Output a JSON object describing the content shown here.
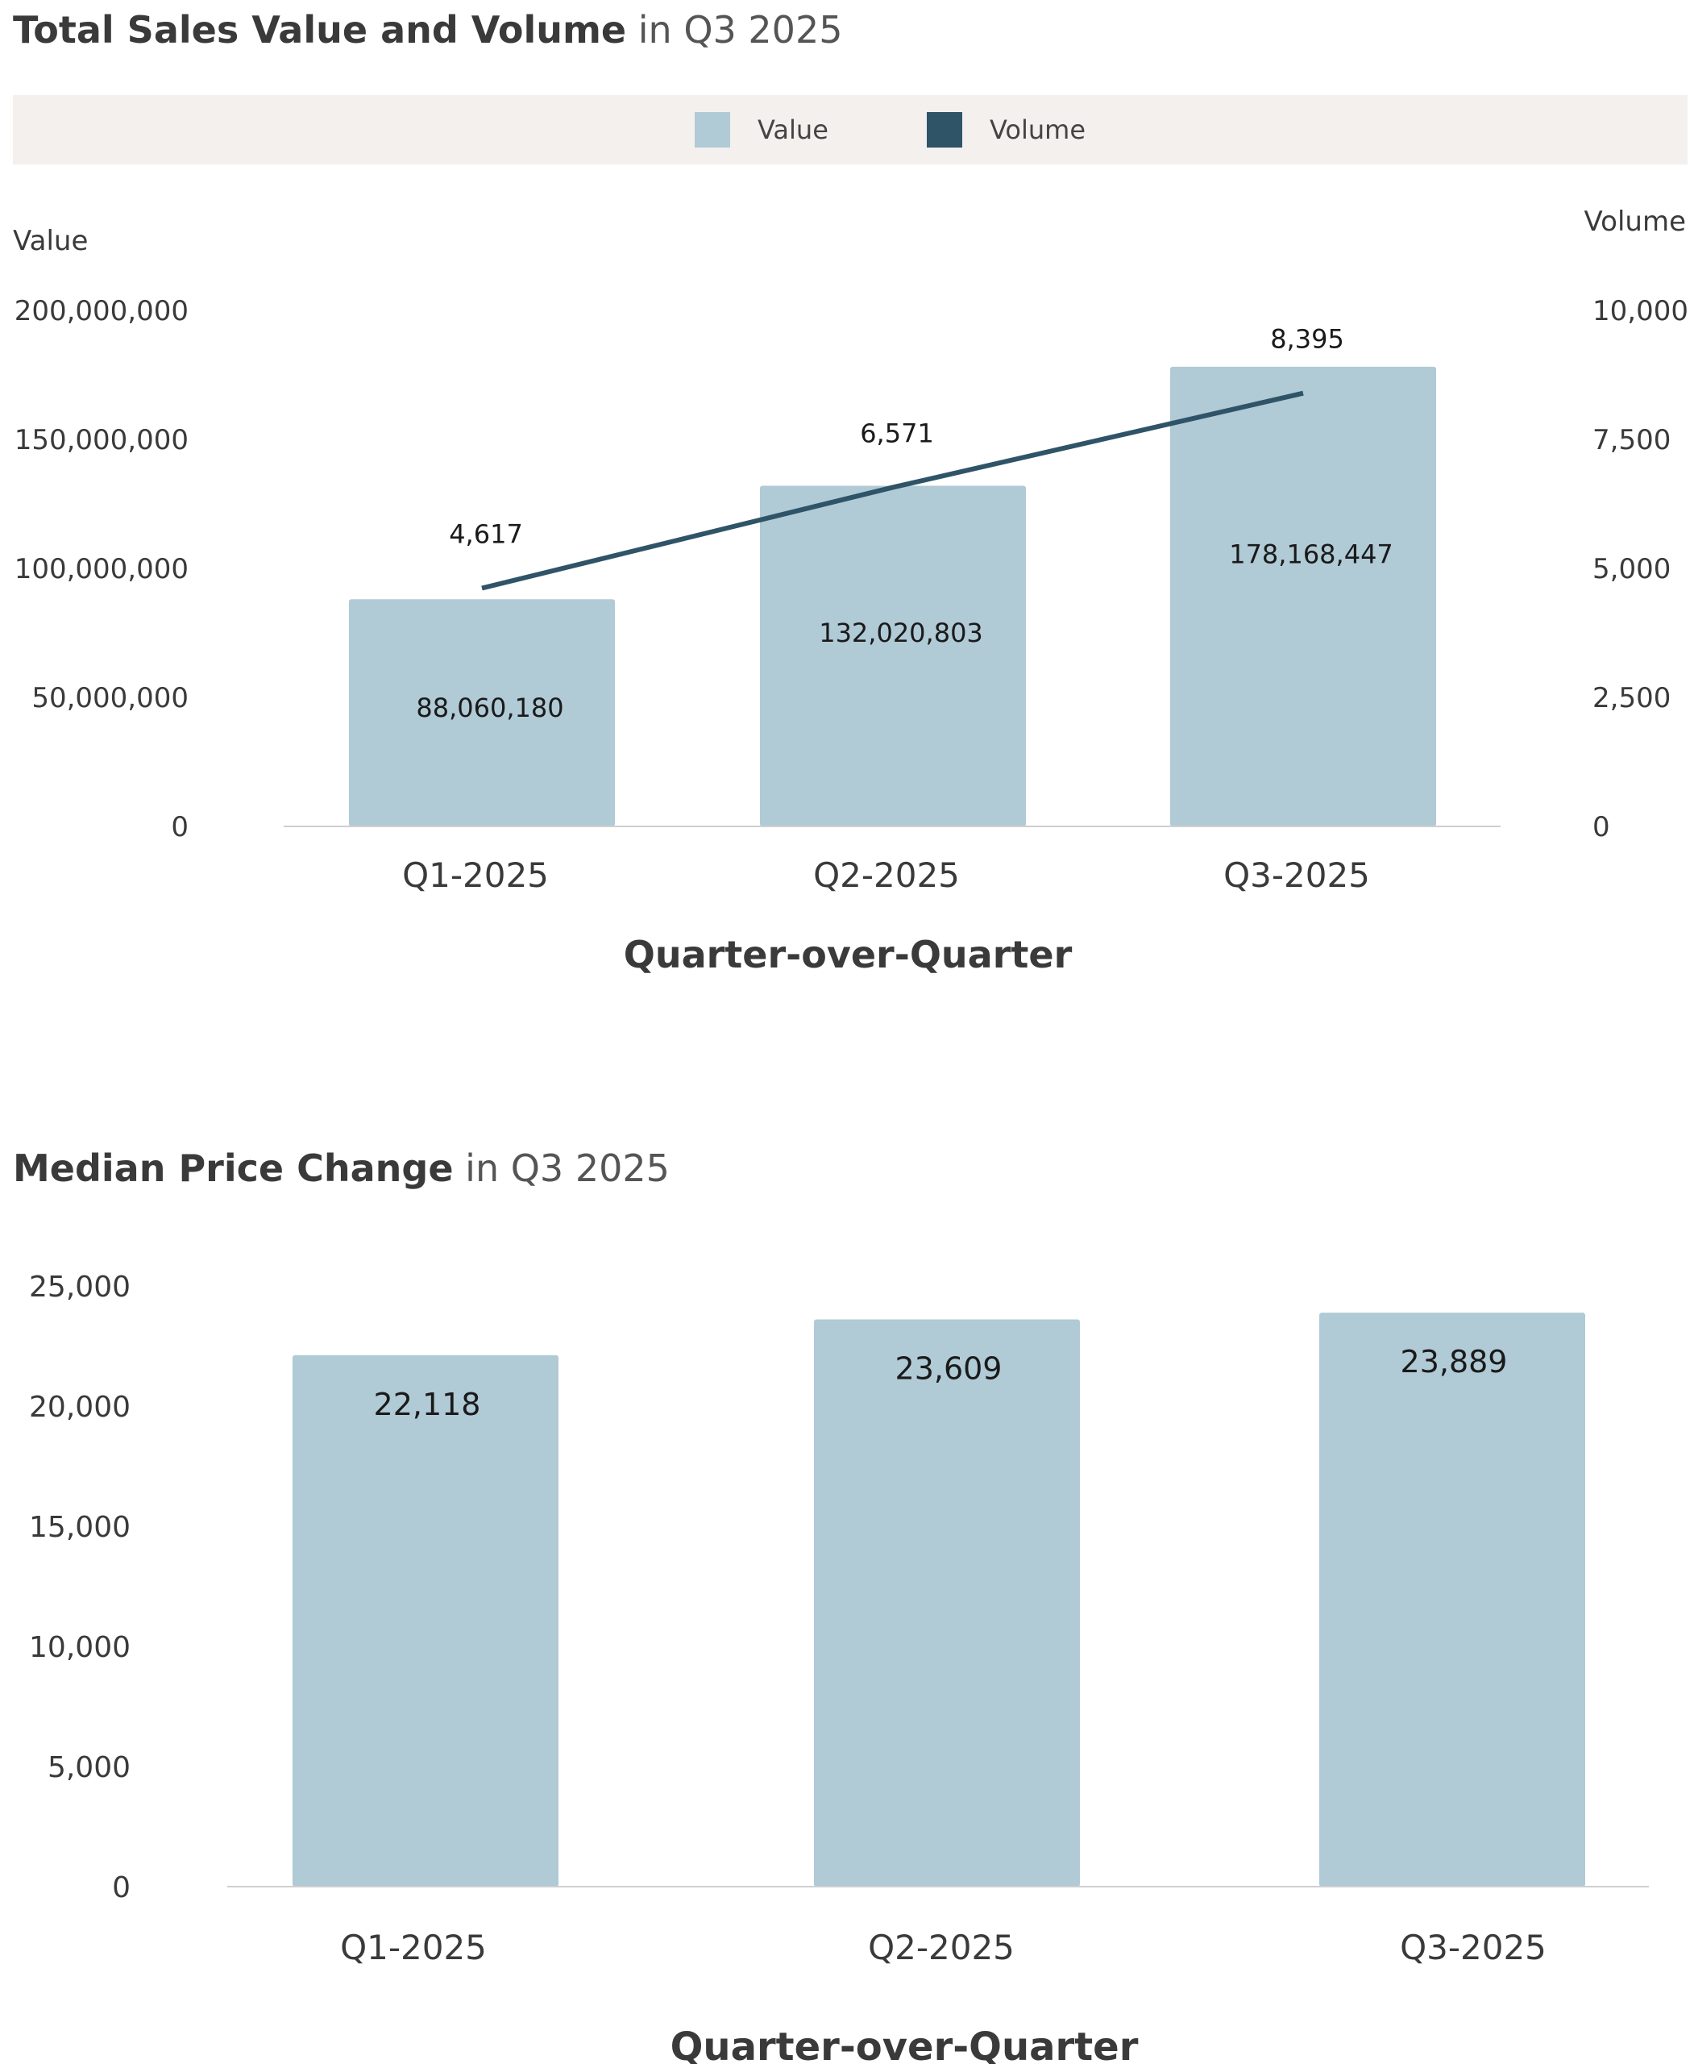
{
  "charts": {
    "sales": {
      "title_bold": "Total Sales Value and Volume",
      "title_light": " in Q3 2025"
    },
    "median": {
      "title_bold": "Median Price Change",
      "title_light": " in Q3 2025"
    }
  },
  "legend": {
    "value_label": "Value",
    "volume_label": "Volume",
    "value_color": "#b0cad6",
    "volume_color": "#2f5467"
  },
  "chart_data": [
    {
      "type": "bar",
      "title": "Total Sales Value and Volume in Q3 2025",
      "categories": [
        "Q1-2025",
        "Q2-2025",
        "Q3-2025"
      ],
      "xlabel": "Quarter-over-Quarter",
      "ylabel": "Value",
      "y2label": "Volume",
      "ylim": [
        0,
        200000000
      ],
      "y2lim": [
        0,
        10000
      ],
      "yticks": [
        0,
        50000000,
        100000000,
        150000000,
        200000000
      ],
      "yticklabels": [
        "0",
        "50,000,000",
        "100,000,000",
        "150,000,000",
        "200,000,000"
      ],
      "y2ticks": [
        0,
        2500,
        5000,
        7500,
        10000
      ],
      "y2ticklabels": [
        "0",
        "2,500",
        "5,000",
        "7,500",
        "10,000"
      ],
      "legend": "top",
      "grid": false,
      "series": [
        {
          "name": "Value",
          "type": "bar",
          "axis": "left",
          "color": "#b0cad6",
          "values": [
            88060180,
            132020803,
            178168447
          ],
          "labels": [
            "88,060,180",
            "132,020,803",
            "178,168,447"
          ]
        },
        {
          "name": "Volume",
          "type": "line",
          "axis": "right",
          "color": "#2f5467",
          "values": [
            4617,
            6571,
            8395
          ],
          "labels": [
            "4,617",
            "6,571",
            "8,395"
          ]
        }
      ]
    },
    {
      "type": "bar",
      "title": "Median Price Change in Q3 2025",
      "categories": [
        "Q1-2025",
        "Q2-2025",
        "Q3-2025"
      ],
      "xlabel": "Quarter-over-Quarter",
      "ylim": [
        0,
        25000
      ],
      "yticks": [
        0,
        5000,
        10000,
        15000,
        20000,
        25000
      ],
      "yticklabels": [
        "0",
        "5,000",
        "10,000",
        "15,000",
        "20,000",
        "25,000"
      ],
      "grid": false,
      "series": [
        {
          "color": "#b0cad6",
          "values": [
            22118,
            23609,
            23889
          ],
          "labels": [
            "22,118",
            "23,609",
            "23,889"
          ]
        }
      ]
    }
  ]
}
